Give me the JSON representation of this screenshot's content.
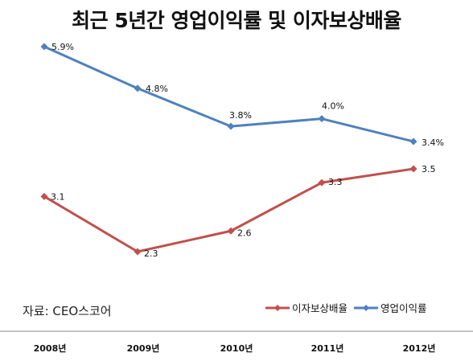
{
  "chart_data": {
    "type": "line",
    "title": "최근 5년간 영업이익률 및 이자보상배율",
    "categories": [
      "2008년",
      "2009년",
      "2010년",
      "2011년",
      "2012년"
    ],
    "series": [
      {
        "name": "이자보상배율",
        "values": [
          3.1,
          2.3,
          2.6,
          3.3,
          3.5
        ],
        "labels": [
          "3.1",
          "2.3",
          "2.6",
          "3.3",
          "3.5"
        ],
        "color": "#c0504d"
      },
      {
        "name": "영업이익률",
        "values": [
          5.9,
          4.8,
          3.8,
          4.0,
          3.4
        ],
        "labels": [
          "5.9%",
          "4.8%",
          "3.8%",
          "4.0%",
          "3.4%"
        ],
        "color": "#4f81bd"
      }
    ],
    "grid": false,
    "legend_position": "bottom-right",
    "source_note": "자료: CEO스코어"
  }
}
